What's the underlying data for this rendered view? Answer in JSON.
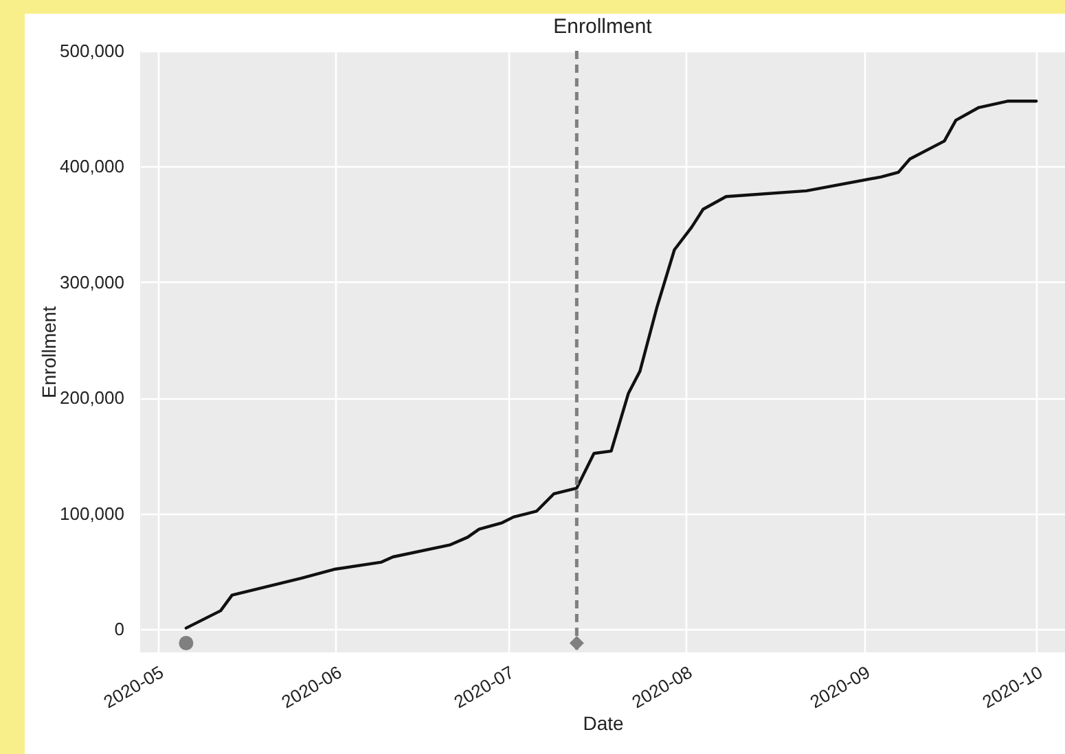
{
  "chart_data": {
    "type": "line",
    "title": "Enrollment",
    "xlabel": "Date",
    "ylabel": "Enrollment",
    "xlim": [
      "2020-04-28",
      "2020-10-06"
    ],
    "xticks": [
      {
        "value": "2020-05-01",
        "label": "2020-05"
      },
      {
        "value": "2020-06-01",
        "label": "2020-06"
      },
      {
        "value": "2020-07-01",
        "label": "2020-07"
      },
      {
        "value": "2020-08-01",
        "label": "2020-08"
      },
      {
        "value": "2020-09-01",
        "label": "2020-09"
      },
      {
        "value": "2020-10-01",
        "label": "2020-10"
      }
    ],
    "ylim": [
      -20000,
      500000
    ],
    "yticks": [
      {
        "value": 0,
        "label": "0"
      },
      {
        "value": 100000,
        "label": "100,000"
      },
      {
        "value": 200000,
        "label": "200,000"
      },
      {
        "value": 300000,
        "label": "300,000"
      },
      {
        "value": 400000,
        "label": "400,000"
      },
      {
        "value": 500000,
        "label": "500,000"
      }
    ],
    "grid": true,
    "legend": false,
    "series": [
      {
        "type": "line",
        "color": "#111111",
        "line_style": "solid",
        "x": [
          "2020-05-06",
          "2020-05-12",
          "2020-05-14",
          "2020-05-26",
          "2020-06-01",
          "2020-06-09",
          "2020-06-11",
          "2020-06-21",
          "2020-06-24",
          "2020-06-26",
          "2020-06-30",
          "2020-07-02",
          "2020-07-06",
          "2020-07-09",
          "2020-07-13",
          "2020-07-16",
          "2020-07-19",
          "2020-07-22",
          "2020-07-24",
          "2020-07-27",
          "2020-07-30",
          "2020-08-02",
          "2020-08-04",
          "2020-08-08",
          "2020-08-22",
          "2020-09-04",
          "2020-09-07",
          "2020-09-09",
          "2020-09-15",
          "2020-09-17",
          "2020-09-21",
          "2020-09-26",
          "2020-10-01"
        ],
        "values": [
          1000,
          16000,
          29500,
          44000,
          52000,
          58000,
          62500,
          73000,
          79500,
          86500,
          92000,
          97000,
          102000,
          117000,
          122000,
          152000,
          154000,
          204000,
          223000,
          279000,
          328000,
          347500,
          363000,
          374000,
          379000,
          391000,
          395000,
          406500,
          422000,
          440000,
          451000,
          456500,
          456500
        ]
      },
      {
        "type": "scatter",
        "marker": "circle",
        "color": "#808080",
        "x": [
          "2020-05-06"
        ],
        "values": [
          -12000
        ]
      },
      {
        "type": "scatter",
        "marker": "diamond",
        "color": "#808080",
        "x": [
          "2020-07-13"
        ],
        "values": [
          -12000
        ]
      }
    ],
    "ref_lines": [
      {
        "axis": "x",
        "value": "2020-07-13",
        "color": "#808080",
        "line_style": "dashed"
      }
    ]
  }
}
